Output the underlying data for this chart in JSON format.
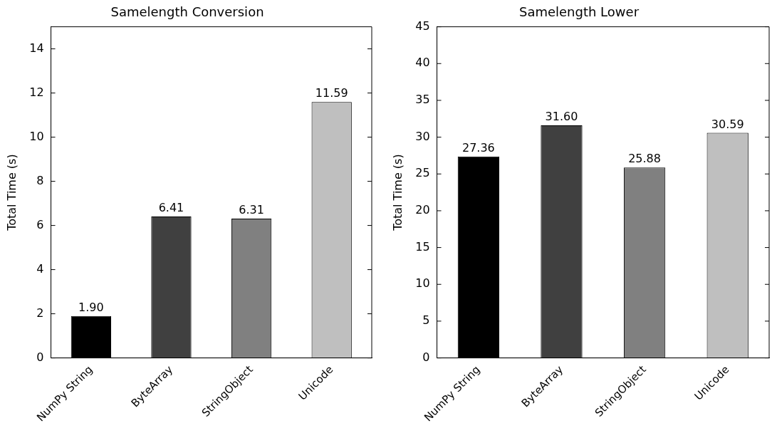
{
  "chart_data": [
    {
      "type": "bar",
      "title": "Samelength Conversion",
      "ylabel": "Total Time (s)",
      "categories": [
        "NumPy String",
        "ByteArray",
        "StringObject",
        "Unicode"
      ],
      "values": [
        1.9,
        6.41,
        6.31,
        11.59
      ],
      "colors": [
        "#000000",
        "#404040",
        "#808080",
        "#bfbfbf"
      ],
      "value_labels": [
        "1.90",
        "6.41",
        "6.31",
        "11.59"
      ],
      "ylim": [
        0,
        15
      ],
      "yticks": [
        0,
        2,
        4,
        6,
        8,
        10,
        12,
        14
      ],
      "grid": false,
      "legend": false
    },
    {
      "type": "bar",
      "title": "Samelength Lower",
      "ylabel": "Total Time (s)",
      "categories": [
        "NumPy String",
        "ByteArray",
        "StringObject",
        "Unicode"
      ],
      "values": [
        27.36,
        31.6,
        25.88,
        30.59
      ],
      "colors": [
        "#000000",
        "#404040",
        "#808080",
        "#bfbfbf"
      ],
      "value_labels": [
        "27.36",
        "31.60",
        "25.88",
        "30.59"
      ],
      "ylim": [
        0,
        45
      ],
      "yticks": [
        0,
        5,
        10,
        15,
        20,
        25,
        30,
        35,
        40,
        45
      ],
      "grid": false,
      "legend": false
    }
  ]
}
